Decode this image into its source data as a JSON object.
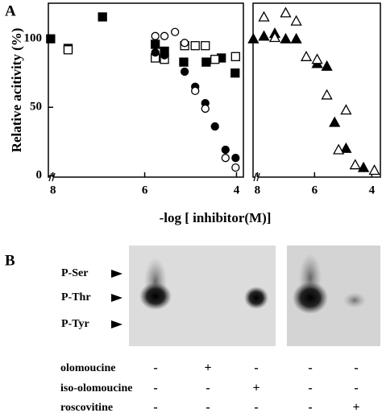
{
  "chart_data": [
    {
      "type": "scatter",
      "panel_label": "A",
      "ylabel": "Relative acitivity (%)",
      "xlabel": "-log [ inhibitor(M)]",
      "xlim": [
        8.1,
        3.85
      ],
      "ylim": [
        -1,
        126
      ],
      "xticks": [
        8,
        6,
        4
      ],
      "yticks": [
        0,
        50,
        100
      ],
      "series": [
        {
          "marker": "square",
          "filled": true,
          "color": "#000000",
          "x": [
            8.05,
            6.92,
            7.67,
            5.77,
            5.57,
            5.15,
            4.66,
            4.33,
            4.03
          ],
          "values": [
            100,
            116,
            93,
            96,
            91,
            83,
            83,
            86,
            75
          ]
        },
        {
          "marker": "square",
          "filled": false,
          "color": "#000000",
          "x": [
            7.67,
            5.77,
            5.57,
            5.13,
            4.9,
            4.68,
            4.47,
            4.02
          ],
          "values": [
            92,
            86,
            85,
            95,
            95,
            95,
            85,
            87
          ]
        },
        {
          "marker": "circle",
          "filled": true,
          "color": "#000000",
          "x": [
            5.77,
            5.57,
            5.13,
            4.9,
            4.68,
            4.47,
            4.24,
            4.02
          ],
          "values": [
            90,
            88,
            76,
            65,
            53,
            36,
            19,
            13
          ]
        },
        {
          "marker": "circle",
          "filled": false,
          "color": "#000000",
          "x": [
            5.77,
            5.57,
            5.34,
            5.13,
            4.9,
            4.68,
            4.24,
            4.02
          ],
          "values": [
            102,
            102,
            105,
            97,
            62,
            49,
            13,
            6
          ]
        }
      ]
    },
    {
      "type": "scatter",
      "xlim": [
        8.15,
        3.7
      ],
      "ylim": [
        -1,
        126
      ],
      "xticks": [
        8,
        6,
        4
      ],
      "series": [
        {
          "marker": "triangle",
          "filled": true,
          "color": "#000000",
          "x": [
            8.14,
            7.77,
            7.39,
            7.01,
            6.64,
            5.91,
            5.57,
            5.3,
            4.9,
            4.29
          ],
          "values": [
            100,
            102,
            104,
            100,
            100,
            82,
            80,
            39,
            20,
            6
          ]
        },
        {
          "marker": "triangle",
          "filled": false,
          "color": "#000000",
          "x": [
            7.77,
            7.39,
            7.01,
            6.64,
            6.29,
            5.91,
            5.57,
            4.9,
            5.16,
            4.58,
            3.91
          ],
          "values": [
            116,
            101,
            119,
            113,
            87,
            85,
            59,
            48,
            19,
            8,
            4
          ]
        }
      ]
    }
  ],
  "gel": {
    "panel_label": "B",
    "bands": [
      "P-Ser",
      "P-Thr",
      "P-Tyr"
    ],
    "rows": [
      {
        "label": "olomoucine",
        "signs": [
          "-",
          "+",
          "-",
          "-",
          "-"
        ]
      },
      {
        "label": "iso-olomoucine",
        "signs": [
          "-",
          "-",
          "+",
          "-",
          "-"
        ]
      },
      {
        "label": "roscovitine",
        "signs": [
          "-",
          "-",
          "-",
          "-",
          "+"
        ]
      }
    ]
  }
}
